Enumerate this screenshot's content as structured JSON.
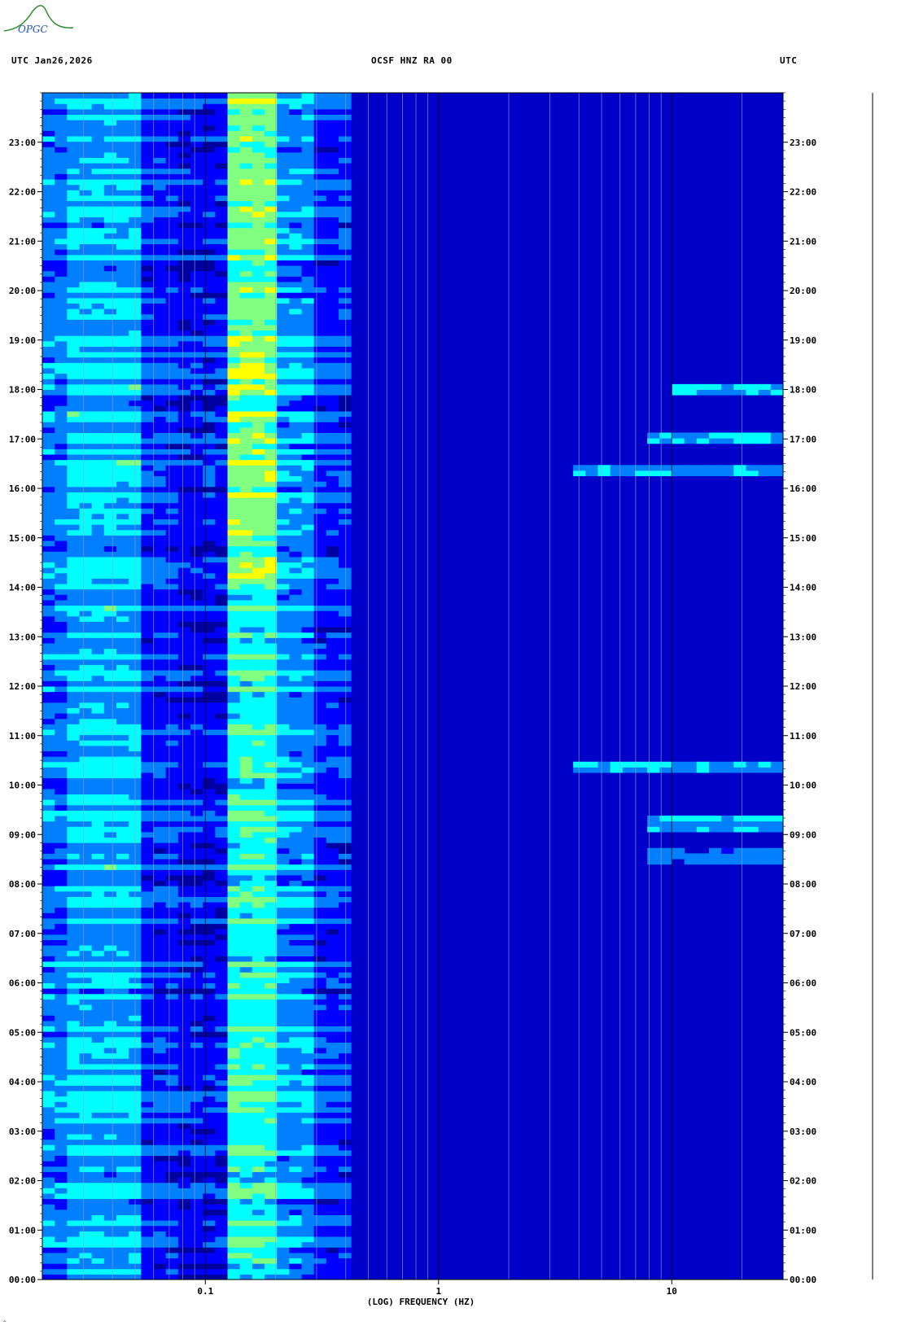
{
  "header": {
    "left": "UTC  Jan26,2026",
    "center": "OCSF HNZ RA 00",
    "right": "UTC"
  },
  "logo": {
    "text": "OPGC"
  },
  "chart_data": {
    "type": "heatmap",
    "title": "OCSF HNZ RA 00",
    "date": "Jan26,2026",
    "xlabel": "(LOG) FREQUENCY (HZ)",
    "ylabel": "UTC",
    "x_scale": "log",
    "xlim": [
      0.02,
      30
    ],
    "x_ticks": [
      0.1,
      1,
      10
    ],
    "x_tick_labels": [
      "0.1",
      "1",
      "10"
    ],
    "y_ticks": [
      "00:00",
      "01:00",
      "02:00",
      "03:00",
      "04:00",
      "05:00",
      "06:00",
      "07:00",
      "08:00",
      "09:00",
      "10:00",
      "11:00",
      "12:00",
      "13:00",
      "14:00",
      "15:00",
      "16:00",
      "17:00",
      "18:00",
      "19:00",
      "20:00",
      "21:00",
      "22:00",
      "23:00"
    ],
    "ylim_hours": [
      0,
      24
    ],
    "colormap": [
      "#0000a0",
      "#0000ff",
      "#0080ff",
      "#00ffff",
      "#80ff80",
      "#ffff00",
      "#ff0000"
    ],
    "bands": [
      {
        "freq_range": [
          0.02,
          0.05
        ],
        "level": "medium",
        "color": "#0a8cff"
      },
      {
        "freq_range": [
          0.13,
          0.2
        ],
        "level": "high",
        "color": "#40ffd0"
      },
      {
        "freq_range": [
          0.2,
          0.35
        ],
        "level": "medium-high",
        "color": "#1aa0ff"
      },
      {
        "freq_range": [
          0.4,
          30
        ],
        "level": "low",
        "color": "#0000c8"
      }
    ],
    "events": [
      {
        "time": "16:20",
        "freq_range": [
          4,
          30
        ]
      },
      {
        "time": "17:00",
        "freq_range": [
          8,
          30
        ]
      },
      {
        "time": "17:55",
        "freq_range": [
          10,
          30
        ]
      },
      {
        "time": "08:30",
        "freq_range": [
          8,
          30
        ]
      },
      {
        "time": "09:10",
        "freq_range": [
          8,
          30
        ]
      },
      {
        "time": "10:20",
        "freq_range": [
          4,
          30
        ]
      }
    ]
  }
}
